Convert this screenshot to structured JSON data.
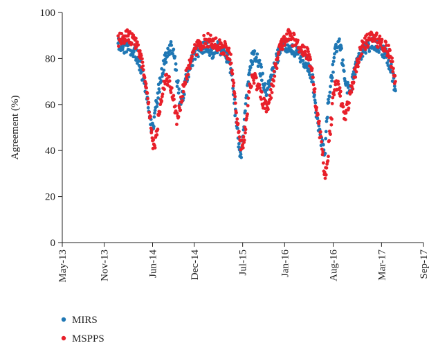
{
  "chart_data": {
    "type": "scatter",
    "title": "",
    "xlabel": "",
    "ylabel": "Agreement (%)",
    "xlim": [
      "2013-05-01",
      "2017-09-01"
    ],
    "ylim": [
      0,
      100
    ],
    "x_ticks": [
      "May-13",
      "Nov-13",
      "Jun-14",
      "Dec-14",
      "Jul-15",
      "Jan-16",
      "Aug-16",
      "Mar-17",
      "Sep-17"
    ],
    "x_tick_dates": [
      "2013-05-01",
      "2013-11-01",
      "2014-06-01",
      "2014-12-01",
      "2015-07-01",
      "2016-01-01",
      "2016-08-01",
      "2017-03-01",
      "2017-09-01"
    ],
    "y_ticks": [
      0,
      20,
      40,
      60,
      80,
      100
    ],
    "grid": false,
    "legend_position": "bottom-left",
    "series": [
      {
        "name": "MIRS",
        "color": "#1f77b4",
        "x": [
          "2014-01-01",
          "2014-01-20",
          "2014-02-10",
          "2014-03-01",
          "2014-03-20",
          "2014-04-05",
          "2014-04-20",
          "2014-05-05",
          "2014-05-15",
          "2014-05-25",
          "2014-06-01",
          "2014-06-10",
          "2014-06-20",
          "2014-07-01",
          "2014-07-15",
          "2014-08-01",
          "2014-08-15",
          "2014-09-01",
          "2014-09-15",
          "2014-10-01",
          "2014-10-20",
          "2014-11-10",
          "2014-12-01",
          "2014-12-20",
          "2015-01-10",
          "2015-02-01",
          "2015-02-20",
          "2015-03-10",
          "2015-04-01",
          "2015-04-20",
          "2015-05-10",
          "2015-05-25",
          "2015-06-05",
          "2015-06-15",
          "2015-06-25",
          "2015-07-05",
          "2015-07-20",
          "2015-08-05",
          "2015-08-20",
          "2015-09-05",
          "2015-09-25",
          "2015-10-15",
          "2015-11-01",
          "2015-11-20",
          "2015-12-10",
          "2016-01-01",
          "2016-01-20",
          "2016-02-10",
          "2016-03-01",
          "2016-03-20",
          "2016-04-10",
          "2016-05-01",
          "2016-05-15",
          "2016-06-01",
          "2016-06-15",
          "2016-06-25",
          "2016-07-05",
          "2016-07-20",
          "2016-08-05",
          "2016-08-15",
          "2016-09-01",
          "2016-09-20",
          "2016-10-10",
          "2016-11-01",
          "2016-11-20",
          "2016-12-10",
          "2017-01-01",
          "2017-01-20",
          "2017-02-10",
          "2017-03-01",
          "2017-03-20",
          "2017-04-05",
          "2017-04-20",
          "2017-05-01"
        ],
        "y": [
          87,
          85,
          86,
          84,
          82,
          78,
          72,
          65,
          58,
          52,
          49,
          55,
          62,
          68,
          75,
          82,
          85,
          83,
          72,
          60,
          68,
          76,
          81,
          84,
          85,
          84,
          83,
          85,
          84,
          82,
          76,
          62,
          50,
          42,
          38,
          48,
          66,
          78,
          82,
          80,
          72,
          65,
          70,
          78,
          83,
          86,
          85,
          84,
          82,
          80,
          78,
          72,
          60,
          48,
          42,
          38,
          55,
          68,
          80,
          85,
          86,
          72,
          65,
          73,
          80,
          84,
          86,
          86,
          85,
          84,
          82,
          78,
          72,
          66
        ]
      },
      {
        "name": "MSPPS",
        "color": "#e8202a",
        "x": [
          "2014-01-01",
          "2014-01-20",
          "2014-02-10",
          "2014-03-01",
          "2014-03-20",
          "2014-04-05",
          "2014-04-20",
          "2014-05-05",
          "2014-05-15",
          "2014-05-25",
          "2014-06-01",
          "2014-06-10",
          "2014-06-20",
          "2014-07-01",
          "2014-07-15",
          "2014-08-01",
          "2014-08-15",
          "2014-09-01",
          "2014-09-15",
          "2014-10-01",
          "2014-10-20",
          "2014-11-10",
          "2014-12-01",
          "2014-12-20",
          "2015-01-10",
          "2015-02-01",
          "2015-02-20",
          "2015-03-10",
          "2015-04-01",
          "2015-04-20",
          "2015-05-10",
          "2015-05-25",
          "2015-06-05",
          "2015-06-15",
          "2015-06-25",
          "2015-07-05",
          "2015-07-20",
          "2015-08-05",
          "2015-08-20",
          "2015-09-05",
          "2015-09-25",
          "2015-10-15",
          "2015-11-01",
          "2015-11-20",
          "2015-12-10",
          "2016-01-01",
          "2016-01-20",
          "2016-02-10",
          "2016-03-01",
          "2016-03-20",
          "2016-04-10",
          "2016-05-01",
          "2016-05-15",
          "2016-06-01",
          "2016-06-15",
          "2016-06-25",
          "2016-07-05",
          "2016-07-20",
          "2016-08-05",
          "2016-08-15",
          "2016-09-01",
          "2016-09-20",
          "2016-10-10",
          "2016-11-01",
          "2016-11-20",
          "2016-12-10",
          "2017-01-01",
          "2017-01-20",
          "2017-02-10",
          "2017-03-01",
          "2017-03-20",
          "2017-04-05",
          "2017-04-20",
          "2017-05-01"
        ],
        "y": [
          88,
          89,
          90,
          88,
          86,
          82,
          76,
          68,
          60,
          52,
          44,
          40,
          48,
          58,
          66,
          72,
          70,
          62,
          54,
          60,
          70,
          78,
          83,
          86,
          87,
          88,
          87,
          86,
          85,
          84,
          80,
          66,
          55,
          46,
          42,
          44,
          56,
          70,
          72,
          68,
          62,
          58,
          64,
          75,
          84,
          88,
          90,
          88,
          86,
          84,
          82,
          76,
          62,
          50,
          40,
          28,
          34,
          50,
          66,
          70,
          64,
          54,
          62,
          72,
          80,
          86,
          88,
          89,
          88,
          87,
          85,
          82,
          76,
          70
        ]
      }
    ]
  }
}
